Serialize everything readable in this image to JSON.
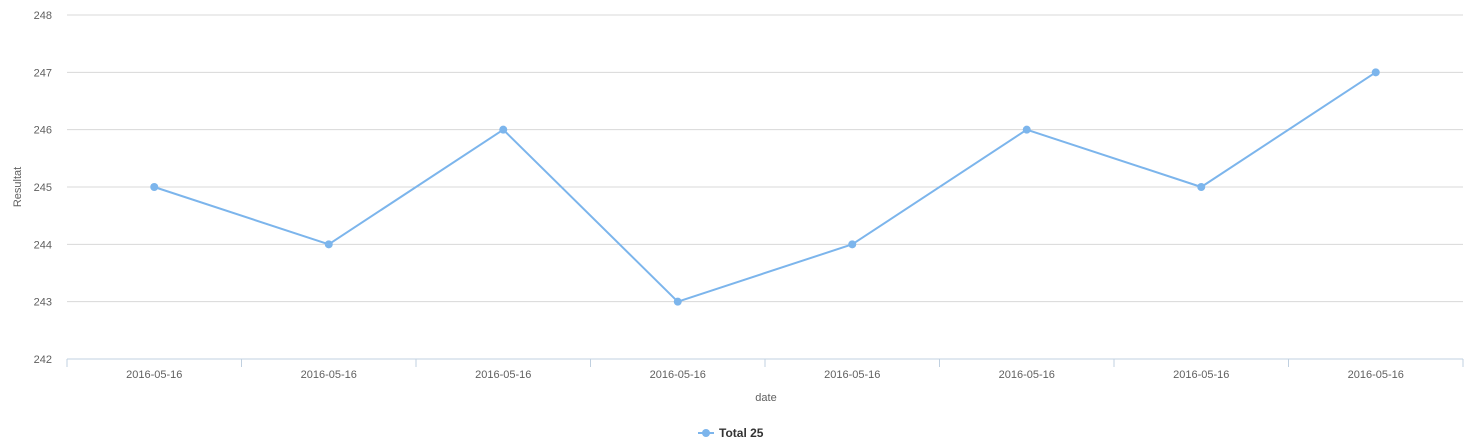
{
  "chart_data": {
    "type": "line",
    "x": [
      "2016-05-16",
      "2016-05-16",
      "2016-05-16",
      "2016-05-16",
      "2016-05-16",
      "2016-05-16",
      "2016-05-16",
      "2016-05-16"
    ],
    "series": [
      {
        "name": "Total 25",
        "values": [
          245,
          244,
          246,
          243,
          244,
          246,
          245,
          247
        ],
        "color": "#7cb5ec"
      }
    ],
    "xlabel": "date",
    "ylabel": "Resultat",
    "ylim": [
      242,
      248
    ],
    "yticks": [
      242,
      243,
      244,
      245,
      246,
      247,
      248
    ],
    "grid": true,
    "legend": "bottom-center"
  }
}
